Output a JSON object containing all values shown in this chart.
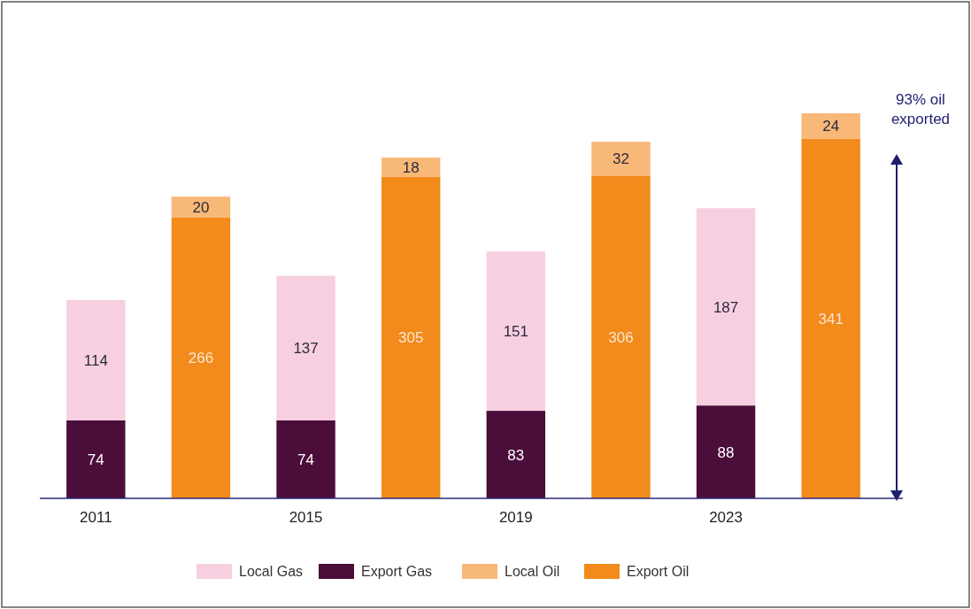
{
  "chart_data": {
    "type": "bar",
    "stacked": true,
    "data_labels": true,
    "legend": "bottom",
    "categories": [
      "2011",
      null,
      "2015",
      null,
      "2019",
      null,
      "2023",
      null
    ],
    "series": [
      {
        "name": "Export Gas",
        "color": "#4b0d3a",
        "values": [
          74,
          null,
          74,
          null,
          83,
          null,
          88,
          null
        ]
      },
      {
        "name": "Local Gas",
        "color": "#f7cfe1",
        "values": [
          114,
          null,
          137,
          null,
          151,
          null,
          187,
          null
        ]
      },
      {
        "name": "Export Oil",
        "color": "#f28a1c",
        "values": [
          null,
          266,
          null,
          305,
          null,
          306,
          null,
          341
        ]
      },
      {
        "name": "Local Oil",
        "color": "#f8b878",
        "values": [
          null,
          20,
          null,
          18,
          null,
          32,
          null,
          24
        ]
      }
    ],
    "annotations": [
      "93% oil exported"
    ]
  }
}
